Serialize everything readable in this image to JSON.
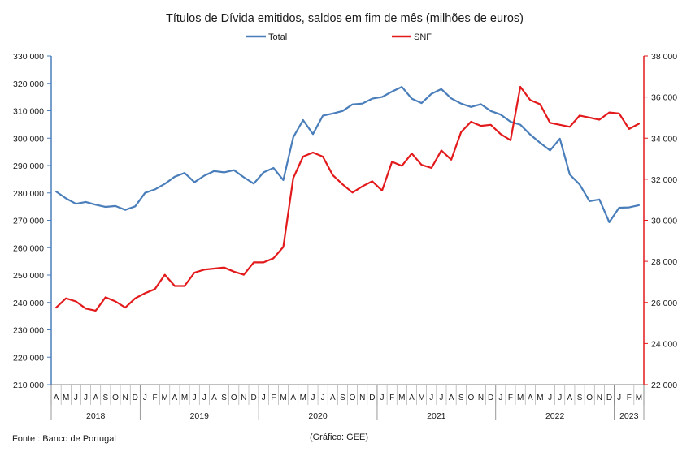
{
  "chart_data": {
    "type": "line",
    "title": "Títulos de Dívida emitidos, saldos em fim de mês  (milhões de euros)",
    "source": "Fonte : Banco de Portugal",
    "credit": "(Gráfico: GEE)",
    "legend_position": "top-center",
    "grid": false,
    "left_axis": {
      "ylim": [
        210000,
        330000
      ],
      "ticks": [
        "210 000",
        "220 000",
        "230 000",
        "240 000",
        "250 000",
        "260 000",
        "270 000",
        "280 000",
        "290 000",
        "300 000",
        "310 000",
        "320 000",
        "330 000"
      ]
    },
    "right_axis": {
      "ylim": [
        22000,
        38000
      ],
      "ticks": [
        "22 000",
        "24 000",
        "26 000",
        "28 000",
        "30 000",
        "32 000",
        "34 000",
        "36 000",
        "38 000"
      ]
    },
    "months": [
      "A",
      "M",
      "J",
      "J",
      "A",
      "S",
      "O",
      "N",
      "D",
      "J",
      "F",
      "M",
      "A",
      "M",
      "J",
      "J",
      "A",
      "S",
      "O",
      "N",
      "D",
      "J",
      "F",
      "M",
      "A",
      "M",
      "J",
      "J",
      "A",
      "S",
      "O",
      "N",
      "D",
      "J",
      "F",
      "M",
      "A",
      "M",
      "J",
      "J",
      "A",
      "S",
      "O",
      "N",
      "D",
      "J",
      "F",
      "M",
      "A",
      "M",
      "J",
      "J",
      "A",
      "S",
      "O",
      "N",
      "D",
      "J",
      "F",
      "M"
    ],
    "years": [
      {
        "label": "2018",
        "span": 9
      },
      {
        "label": "2019",
        "span": 12
      },
      {
        "label": "2020",
        "span": 12
      },
      {
        "label": "2021",
        "span": 12
      },
      {
        "label": "2022",
        "span": 12
      },
      {
        "label": "2023",
        "span": 3
      }
    ],
    "series": [
      {
        "name": "Total",
        "axis": "left",
        "color": "#4a7ebb",
        "values": [
          280500,
          278000,
          276000,
          276700,
          275700,
          274900,
          275200,
          273800,
          275100,
          280000,
          281300,
          283300,
          285900,
          287300,
          283900,
          286300,
          288000,
          287500,
          288300,
          285700,
          283400,
          287500,
          289100,
          284700,
          300300,
          306600,
          301500,
          308200,
          309000,
          309900,
          312300,
          312600,
          314400,
          315000,
          317000,
          318700,
          314400,
          312800,
          316200,
          317900,
          314500,
          312600,
          311400,
          312400,
          309900,
          308600,
          306000,
          304900,
          301300,
          298300,
          295500,
          299800,
          286700,
          283100,
          277000,
          277600,
          269300,
          274600,
          274700,
          275500
        ]
      },
      {
        "name": "SNF",
        "axis": "right",
        "color": "#e31a1c",
        "values": [
          25750,
          26200,
          26050,
          25700,
          25600,
          26250,
          26050,
          25750,
          26200,
          26450,
          26650,
          27350,
          26800,
          26800,
          27450,
          27600,
          27650,
          27700,
          27500,
          27350,
          27950,
          27950,
          28150,
          28700,
          32050,
          33100,
          33300,
          33100,
          32200,
          31750,
          31350,
          31650,
          31900,
          31450,
          32850,
          32650,
          33250,
          32700,
          32550,
          33400,
          32950,
          34300,
          34800,
          34600,
          34650,
          34200,
          33900,
          36500,
          35850,
          35650,
          34750,
          34650,
          34550,
          35100,
          35000,
          34900,
          35250,
          35200,
          34450,
          34700
        ]
      }
    ]
  }
}
